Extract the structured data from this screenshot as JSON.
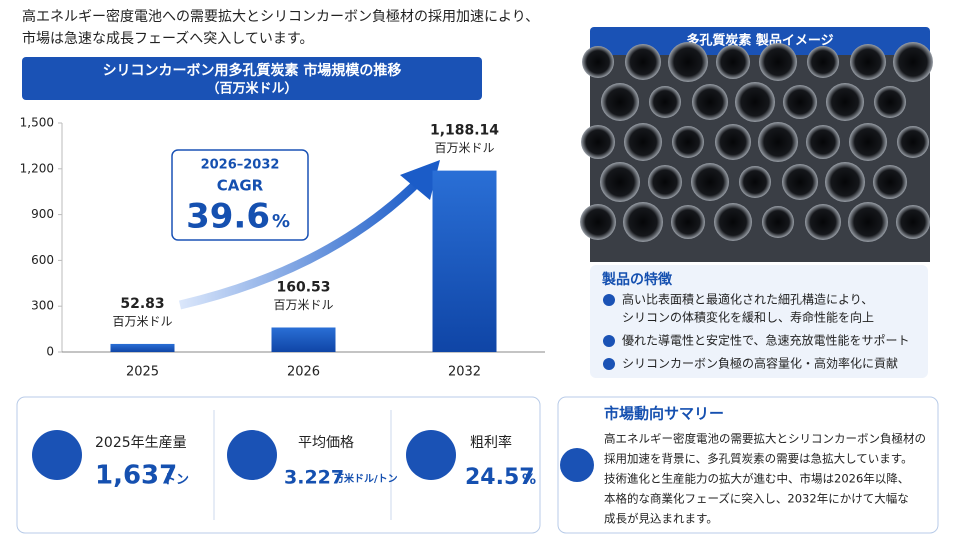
{
  "header": {
    "lines": [
      "高エネルギー密度電池への需要拡大とシリコンカーボン負極材の採用加速により、",
      "市場は急速な成長フェーズへ突入しています。"
    ]
  },
  "chart_data": {
    "type": "bar",
    "title": "シリコンカーボン用多孔質炭素 市場規模の推移",
    "subtitle": "（百万米ドル）",
    "categories": [
      "2025",
      "2026",
      "2032"
    ],
    "values": [
      52.83,
      160.53,
      1188.14
    ],
    "value_labels": [
      "52.83",
      "160.53",
      "1,188.14"
    ],
    "value_unit": "百万米ドル",
    "color": "#1a56c0",
    "ylim": [
      0,
      1500
    ],
    "yticks": [
      0,
      300,
      600,
      900,
      {
        "value": 1200,
        "label": "1,200"
      },
      {
        "value": 1500,
        "label": "1,500"
      }
    ],
    "grid": false,
    "annotation": {
      "period": "2026–2032",
      "label": "CAGR",
      "value": "39.6",
      "unit": "%"
    }
  },
  "kpis": [
    {
      "label": "2025年生産量",
      "value": "1,637",
      "unit": "トン"
    },
    {
      "label": "平均価格",
      "value": "3.227",
      "unit": "万米ドル/トン"
    },
    {
      "label": "粗利率",
      "value": "24.57",
      "unit": "%"
    }
  ],
  "image": {
    "title": "多孔質炭素 製品イメージ"
  },
  "features": {
    "title": "製品の特徴",
    "items": [
      [
        "高い比表面積と最適化された細孔構造により、",
        "シリコンの体積変化を緩和し、寿命性能を向上"
      ],
      [
        "優れた導電性と安定性で、急速充放電性能をサポート"
      ],
      [
        "シリコンカーボン負極の高容量化・高効率化に貢献"
      ]
    ]
  },
  "summary": {
    "title": "市場動向サマリー",
    "lines": [
      "高エネルギー密度電池の需要拡大とシリコンカーボン負極材の",
      "採用加速を背景に、多孔質炭素の需要は急拡大しています。",
      "技術進化と生産能力の拡大が進む中、市場は2026年以降、",
      "本格的な商業化フェーズに突入し、2032年にかけて大幅な",
      "成長が見込まれます。"
    ]
  }
}
